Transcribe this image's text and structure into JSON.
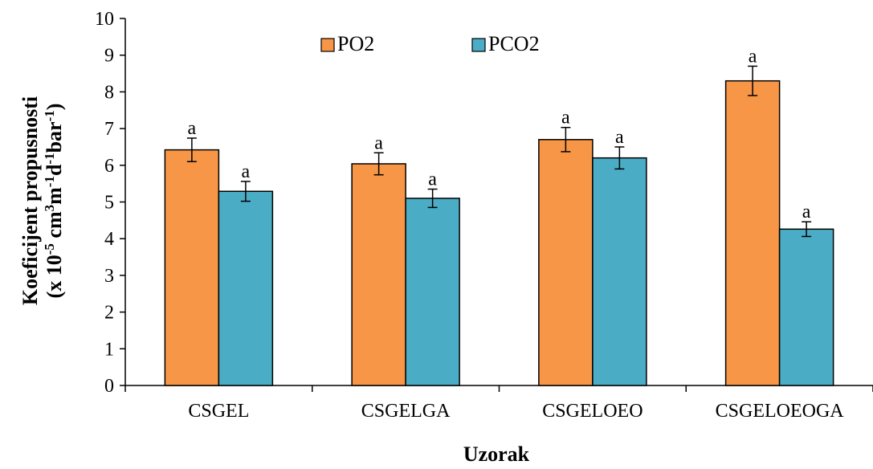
{
  "chart_data": {
    "type": "bar",
    "categories": [
      "CSGEL",
      "CSGELGA",
      "CSGELOEO",
      "CSGELOEOGA"
    ],
    "series": [
      {
        "name": "PO2",
        "color": "#F79646",
        "values": [
          6.42,
          6.04,
          6.7,
          8.3
        ],
        "errors": [
          0.32,
          0.3,
          0.33,
          0.4
        ],
        "labels": [
          "a",
          "a",
          "a",
          "a"
        ]
      },
      {
        "name": "PCO2",
        "color": "#4BACC6",
        "values": [
          5.29,
          5.1,
          6.2,
          4.26
        ],
        "errors": [
          0.27,
          0.25,
          0.3,
          0.2
        ],
        "labels": [
          "a",
          "a",
          "a",
          "a"
        ]
      }
    ],
    "xlabel": "Uzorak",
    "ylabel_line1": "Koeficijent propusnosti",
    "ylabel_line2": "(x 10-5 cm3m-1d-1bar-1)",
    "ylim": [
      0,
      10
    ],
    "yticks": [
      "0",
      "1",
      "2",
      "3",
      "4",
      "5",
      "6",
      "7",
      "8",
      "9",
      "10"
    ],
    "grid": false,
    "legend_position": "top-center"
  }
}
